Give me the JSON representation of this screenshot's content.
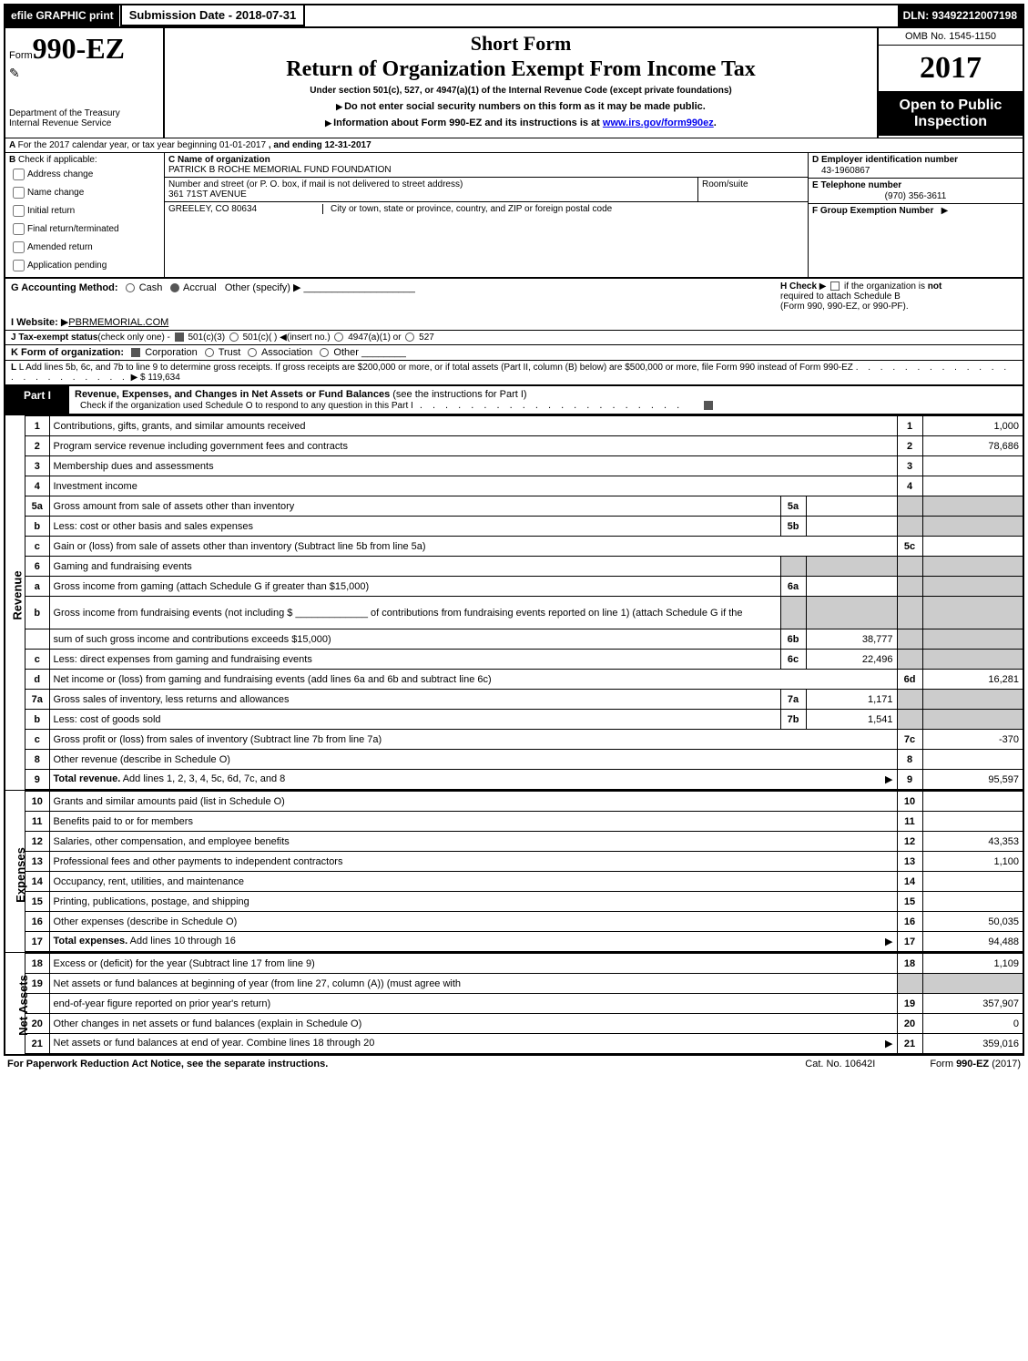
{
  "header": {
    "efile": "efile GRAPHIC print",
    "submission_label": "Submission Date - 2018-07-31",
    "dln_label": "DLN: 93492212007198",
    "form_prefix": "Form",
    "form_number": "990-EZ",
    "short_form": "Short Form",
    "main_title": "Return of Organization Exempt From Income Tax",
    "subtitle": "Under section 501(c), 527, or 4947(a)(1) of the Internal Revenue Code (except private foundations)",
    "instr1": "Do not enter social security numbers on this form as it may be made public.",
    "instr2_prefix": "Information about Form 990-EZ and its instructions is at ",
    "instr2_link": "www.irs.gov/form990ez",
    "instr2_suffix": ".",
    "dept1": "Department of the Treasury",
    "dept2": "Internal Revenue Service",
    "omb": "OMB No. 1545-1150",
    "year": "2017",
    "open_public": "Open to Public Inspection"
  },
  "section_a": {
    "text": "For the 2017 calendar year, or tax year beginning 01-01-2017",
    "ending": ", and ending 12-31-2017"
  },
  "section_b": {
    "label": "Check if applicable:",
    "items": [
      "Address change",
      "Name change",
      "Initial return",
      "Final return/terminated",
      "Amended return",
      "Application pending"
    ]
  },
  "section_c": {
    "name_label": "C Name of organization",
    "name": "PATRICK B ROCHE MEMORIAL FUND FOUNDATION",
    "addr_label": "Number and street (or P. O. box, if mail is not delivered to street address)",
    "addr": "361 71ST AVENUE",
    "room_label": "Room/suite",
    "city_label": "City or town, state or province, country, and ZIP or foreign postal code",
    "city": "GREELEY, CO  80634"
  },
  "section_d": {
    "ein_label": "D Employer identification number",
    "ein": "43-1960867",
    "tel_label": "E Telephone number",
    "tel": "(970) 356-3611",
    "grp_label": "F Group Exemption Number"
  },
  "line_g": {
    "label": "G Accounting Method:",
    "cash": "Cash",
    "accrual": "Accrual",
    "other": "Other (specify)"
  },
  "line_h": {
    "label": "H  Check",
    "text1": "if the organization is",
    "not": "not",
    "text2": "required to attach Schedule B",
    "text3": "(Form 990, 990-EZ, or 990-PF)."
  },
  "line_i": {
    "label": "I Website:",
    "value": "PBRMEMORIAL.COM"
  },
  "line_j": {
    "label": "J Tax-exempt status",
    "sub": "(check only one) -",
    "opts": [
      "501(c)(3)",
      "501(c)(  )",
      "(insert no.)",
      "4947(a)(1) or",
      "527"
    ]
  },
  "line_k": {
    "label": "K Form of organization:",
    "opts": [
      "Corporation",
      "Trust",
      "Association",
      "Other"
    ]
  },
  "line_l": {
    "text": "L Add lines 5b, 6c, and 7b to line 9 to determine gross receipts. If gross receipts are $200,000 or more, or if total assets (Part II, column (B) below) are $500,000 or more, file Form 990 instead of Form 990-EZ",
    "amount": "$ 119,634"
  },
  "part1": {
    "label": "Part I",
    "title": "Revenue, Expenses, and Changes in Net Assets or Fund Balances",
    "title_sub": "(see the instructions for Part I)",
    "check_o": "Check if the organization used Schedule O to respond to any question in this Part I"
  },
  "sections": {
    "revenue": "Revenue",
    "expenses": "Expenses",
    "net_assets": "Net Assets"
  },
  "rows": [
    {
      "ln": "1",
      "desc": "Contributions, gifts, grants, and similar amounts received",
      "mainln": "1",
      "mainval": "1,000"
    },
    {
      "ln": "2",
      "desc": "Program service revenue including government fees and contracts",
      "mainln": "2",
      "mainval": "78,686"
    },
    {
      "ln": "3",
      "desc": "Membership dues and assessments",
      "mainln": "3",
      "mainval": ""
    },
    {
      "ln": "4",
      "desc": "Investment income",
      "mainln": "4",
      "mainval": ""
    },
    {
      "ln": "5a",
      "desc": "Gross amount from sale of assets other than inventory",
      "subln": "5a",
      "subval": "",
      "shade_main": true
    },
    {
      "ln": "b",
      "desc": "Less: cost or other basis and sales expenses",
      "subln": "5b",
      "subval": "",
      "shade_main": true
    },
    {
      "ln": "c",
      "desc": "Gain or (loss) from sale of assets other than inventory (Subtract line 5b from line 5a)",
      "mainln": "5c",
      "mainval": ""
    },
    {
      "ln": "6",
      "desc": "Gaming and fundraising events",
      "shade_sub": true,
      "shade_main": true
    },
    {
      "ln": "a",
      "desc": "Gross income from gaming (attach Schedule G if greater than $15,000)",
      "subln": "6a",
      "subval": "",
      "shade_main": true
    },
    {
      "ln": "b",
      "desc": "Gross income from fundraising events (not including $ _____________ of contributions from fundraising events reported on line 1) (attach Schedule G if the",
      "tall": true,
      "shade_sub": true,
      "shade_main": true
    },
    {
      "ln": "",
      "desc": "sum of such gross income and contributions exceeds $15,000)",
      "subln": "6b",
      "subval": "38,777",
      "shade_main": true
    },
    {
      "ln": "c",
      "desc": "Less: direct expenses from gaming and fundraising events",
      "subln": "6c",
      "subval": "22,496",
      "shade_main": true
    },
    {
      "ln": "d",
      "desc": "Net income or (loss) from gaming and fundraising events (add lines 6a and 6b and subtract line 6c)",
      "mainln": "6d",
      "mainval": "16,281"
    },
    {
      "ln": "7a",
      "desc": "Gross sales of inventory, less returns and allowances",
      "subln": "7a",
      "subval": "1,171",
      "shade_main": true
    },
    {
      "ln": "b",
      "desc": "Less: cost of goods sold",
      "subln": "7b",
      "subval": "1,541",
      "shade_main": true
    },
    {
      "ln": "c",
      "desc": "Gross profit or (loss) from sales of inventory (Subtract line 7b from line 7a)",
      "mainln": "7c",
      "mainval": "-370"
    },
    {
      "ln": "8",
      "desc": "Other revenue (describe in Schedule O)",
      "mainln": "8",
      "mainval": ""
    },
    {
      "ln": "9",
      "desc": "Total revenue. Add lines 1, 2, 3, 4, 5c, 6d, 7c, and 8",
      "bold": true,
      "arrow": true,
      "mainln": "9",
      "mainval": "95,597"
    }
  ],
  "exp_rows": [
    {
      "ln": "10",
      "desc": "Grants and similar amounts paid (list in Schedule O)",
      "mainln": "10",
      "mainval": ""
    },
    {
      "ln": "11",
      "desc": "Benefits paid to or for members",
      "mainln": "11",
      "mainval": ""
    },
    {
      "ln": "12",
      "desc": "Salaries, other compensation, and employee benefits",
      "mainln": "12",
      "mainval": "43,353"
    },
    {
      "ln": "13",
      "desc": "Professional fees and other payments to independent contractors",
      "mainln": "13",
      "mainval": "1,100"
    },
    {
      "ln": "14",
      "desc": "Occupancy, rent, utilities, and maintenance",
      "mainln": "14",
      "mainval": ""
    },
    {
      "ln": "15",
      "desc": "Printing, publications, postage, and shipping",
      "mainln": "15",
      "mainval": ""
    },
    {
      "ln": "16",
      "desc": "Other expenses (describe in Schedule O)",
      "mainln": "16",
      "mainval": "50,035"
    },
    {
      "ln": "17",
      "desc": "Total expenses. Add lines 10 through 16",
      "bold": true,
      "arrow": true,
      "mainln": "17",
      "mainval": "94,488"
    }
  ],
  "net_rows": [
    {
      "ln": "18",
      "desc": "Excess or (deficit) for the year (Subtract line 17 from line 9)",
      "mainln": "18",
      "mainval": "1,109"
    },
    {
      "ln": "19",
      "desc": "Net assets or fund balances at beginning of year (from line 27, column (A)) (must agree with",
      "shade_main": true
    },
    {
      "ln": "",
      "desc": "end-of-year figure reported on prior year's return)",
      "mainln": "19",
      "mainval": "357,907"
    },
    {
      "ln": "20",
      "desc": "Other changes in net assets or fund balances (explain in Schedule O)",
      "mainln": "20",
      "mainval": "0"
    },
    {
      "ln": "21",
      "desc": "Net assets or fund balances at end of year. Combine lines 18 through 20",
      "arrow": true,
      "mainln": "21",
      "mainval": "359,016"
    }
  ],
  "footer": {
    "left": "For Paperwork Reduction Act Notice, see the separate instructions.",
    "mid": "Cat. No. 10642I",
    "right_prefix": "Form ",
    "right_form": "990-EZ",
    "right_suffix": " (2017)"
  }
}
